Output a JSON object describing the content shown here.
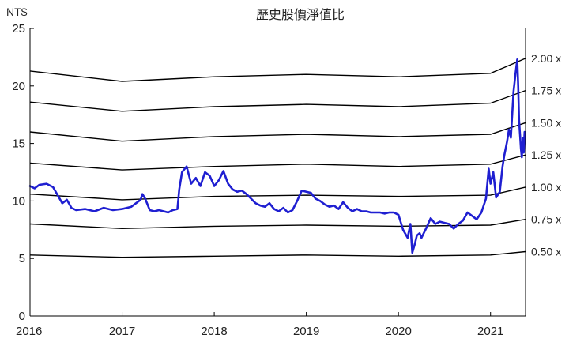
{
  "chart_data": {
    "type": "line",
    "title": "歷史股價淨值比",
    "ylabel": "NT$",
    "xlabel": "",
    "xlim": [
      2016,
      2021.38
    ],
    "ylim": [
      0,
      25
    ],
    "x_ticks": [
      "2016",
      "2017",
      "2018",
      "2019",
      "2020",
      "2021"
    ],
    "y_ticks": [
      "0",
      "5",
      "10",
      "15",
      "20",
      "25"
    ],
    "grid": false,
    "legend": "none",
    "colors": {
      "price": "#1f1fd1",
      "bands": "#000000"
    },
    "price_series": {
      "x": [
        2016.0,
        2016.05,
        2016.1,
        2016.18,
        2016.25,
        2016.3,
        2016.35,
        2016.4,
        2016.45,
        2016.5,
        2016.6,
        2016.7,
        2016.8,
        2016.9,
        2017.0,
        2017.1,
        2017.2,
        2017.22,
        2017.25,
        2017.3,
        2017.35,
        2017.4,
        2017.45,
        2017.5,
        2017.55,
        2017.6,
        2017.62,
        2017.65,
        2017.7,
        2017.75,
        2017.8,
        2017.85,
        2017.9,
        2017.95,
        2018.0,
        2018.05,
        2018.1,
        2018.15,
        2018.2,
        2018.25,
        2018.3,
        2018.35,
        2018.4,
        2018.45,
        2018.5,
        2018.55,
        2018.6,
        2018.65,
        2018.7,
        2018.75,
        2018.8,
        2018.85,
        2018.9,
        2018.95,
        2019.0,
        2019.05,
        2019.1,
        2019.15,
        2019.2,
        2019.25,
        2019.3,
        2019.35,
        2019.4,
        2019.45,
        2019.5,
        2019.55,
        2019.6,
        2019.65,
        2019.7,
        2019.75,
        2019.8,
        2019.85,
        2019.9,
        2019.95,
        2020.0,
        2020.05,
        2020.1,
        2020.13,
        2020.15,
        2020.18,
        2020.2,
        2020.23,
        2020.25,
        2020.3,
        2020.35,
        2020.4,
        2020.45,
        2020.5,
        2020.55,
        2020.6,
        2020.65,
        2020.7,
        2020.75,
        2020.8,
        2020.85,
        2020.9,
        2020.95,
        2020.98,
        2021.0,
        2021.03,
        2021.06,
        2021.1,
        2021.13,
        2021.15,
        2021.18,
        2021.2,
        2021.22,
        2021.25,
        2021.27,
        2021.29,
        2021.3,
        2021.31,
        2021.32,
        2021.33,
        2021.34,
        2021.35,
        2021.36,
        2021.37
      ],
      "y": [
        11.3,
        11.1,
        11.4,
        11.5,
        11.2,
        10.5,
        9.8,
        10.1,
        9.4,
        9.2,
        9.3,
        9.1,
        9.4,
        9.2,
        9.3,
        9.5,
        10.1,
        10.6,
        10.2,
        9.2,
        9.1,
        9.2,
        9.1,
        9.0,
        9.2,
        9.3,
        11.0,
        12.5,
        13.0,
        11.5,
        12.0,
        11.3,
        12.5,
        12.2,
        11.3,
        11.8,
        12.6,
        11.5,
        11.0,
        10.8,
        10.9,
        10.6,
        10.2,
        9.8,
        9.6,
        9.5,
        9.8,
        9.3,
        9.1,
        9.4,
        9.0,
        9.2,
        10.0,
        10.9,
        10.8,
        10.7,
        10.2,
        10.0,
        9.7,
        9.5,
        9.6,
        9.3,
        9.9,
        9.4,
        9.1,
        9.3,
        9.1,
        9.1,
        9.0,
        9.0,
        9.0,
        8.9,
        9.0,
        9.0,
        8.8,
        7.5,
        6.8,
        8.0,
        5.5,
        6.3,
        7.0,
        7.2,
        6.8,
        7.6,
        8.5,
        8.0,
        8.2,
        8.1,
        8.0,
        7.6,
        8.0,
        8.3,
        9.0,
        8.7,
        8.4,
        9.0,
        10.2,
        12.8,
        11.5,
        12.5,
        10.3,
        10.8,
        13.0,
        14.0,
        15.2,
        16.2,
        15.5,
        19.5,
        21.0,
        22.3,
        20.0,
        17.0,
        15.8,
        14.5,
        13.8,
        15.5,
        14.2,
        16.0
      ]
    },
    "pb_bands": [
      {
        "label": "2.00 x",
        "x": [
          2016,
          2017,
          2018,
          2019,
          2020,
          2021,
          2021.38
        ],
        "y": [
          21.3,
          20.4,
          20.8,
          21.0,
          20.8,
          21.1,
          22.4
        ]
      },
      {
        "label": "1.75 x",
        "x": [
          2016,
          2017,
          2018,
          2019,
          2020,
          2021,
          2021.38
        ],
        "y": [
          18.6,
          17.8,
          18.2,
          18.4,
          18.2,
          18.5,
          19.6
        ]
      },
      {
        "label": "1.50 x",
        "x": [
          2016,
          2017,
          2018,
          2019,
          2020,
          2021,
          2021.38
        ],
        "y": [
          16.0,
          15.2,
          15.6,
          15.8,
          15.6,
          15.8,
          16.8
        ]
      },
      {
        "label": "1.25 x",
        "x": [
          2016,
          2017,
          2018,
          2019,
          2020,
          2021,
          2021.38
        ],
        "y": [
          13.3,
          12.7,
          13.0,
          13.2,
          13.0,
          13.2,
          14.0
        ]
      },
      {
        "label": "1.00 x",
        "x": [
          2016,
          2017,
          2018,
          2019,
          2020,
          2021,
          2021.38
        ],
        "y": [
          10.6,
          10.1,
          10.4,
          10.5,
          10.4,
          10.5,
          11.2
        ]
      },
      {
        "label": "0.75 x",
        "x": [
          2016,
          2017,
          2018,
          2019,
          2020,
          2021,
          2021.38
        ],
        "y": [
          8.0,
          7.6,
          7.8,
          7.9,
          7.8,
          7.9,
          8.4
        ]
      },
      {
        "label": "0.50 x",
        "x": [
          2016,
          2017,
          2018,
          2019,
          2020,
          2021,
          2021.38
        ],
        "y": [
          5.3,
          5.1,
          5.2,
          5.3,
          5.2,
          5.3,
          5.6
        ]
      }
    ]
  }
}
